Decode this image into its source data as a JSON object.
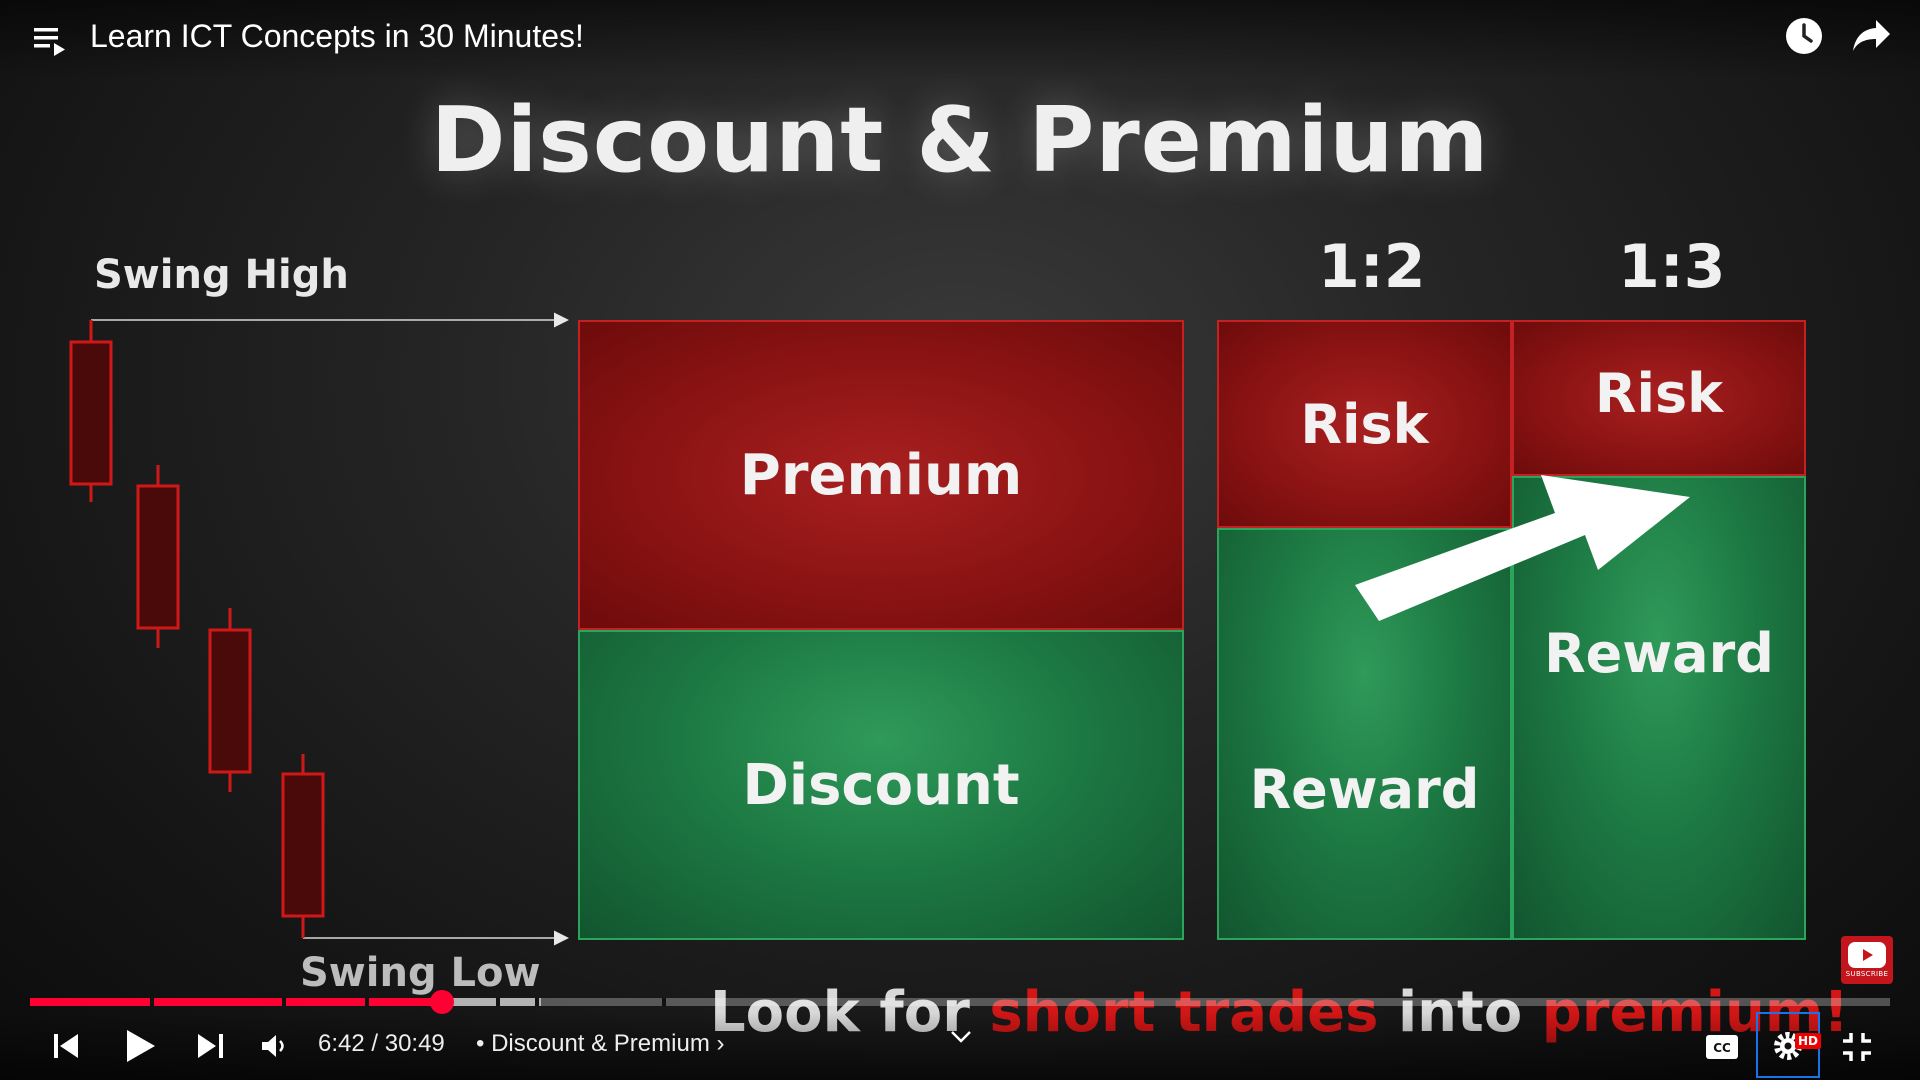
{
  "player": {
    "video_title": "Learn ICT Concepts in 30 Minutes!",
    "current_time": "6:42",
    "duration": "30:49",
    "time_display": "6:42 / 30:49",
    "chapter_separator": "•",
    "chapter_title": "Discount & Premium",
    "chapter_chevron": "›",
    "played_fraction": 0.217,
    "buffered_fraction": 0.275,
    "hd_badge": "HD",
    "accent_color": "#ff0033",
    "icons": {
      "playlist": "playlist-icon",
      "watch_later": "clock-icon",
      "share": "share-arrow-icon",
      "previous": "skip-previous-icon",
      "play": "play-icon",
      "next": "skip-next-icon",
      "volume": "volume-icon",
      "chapter_expand": "chevron-down-icon",
      "captions": "captions-icon",
      "settings": "gear-icon",
      "exit_fullscreen": "exit-fullscreen-icon",
      "subscribe_watermark": "youtube-logo-icon"
    }
  },
  "slide": {
    "title": "Discount & Premium",
    "swing_high": "Swing High",
    "swing_low": "Swing Low",
    "premium": "Premium",
    "discount": "Discount",
    "ratio_a": "1:2",
    "ratio_b": "1:3",
    "risk_a": "Risk",
    "reward_a": "Reward",
    "risk_b": "Risk",
    "reward_b": "Reward",
    "colors": {
      "red": "#8b1313",
      "green": "#1d7a43"
    }
  },
  "subtitle": {
    "part1": "Look for ",
    "part2": "short trades",
    "part3": " into ",
    "part4": "premium!",
    "highlight_color": "#d31616"
  },
  "watermark": {
    "subscribe_text": "SUBSCRIBE"
  }
}
